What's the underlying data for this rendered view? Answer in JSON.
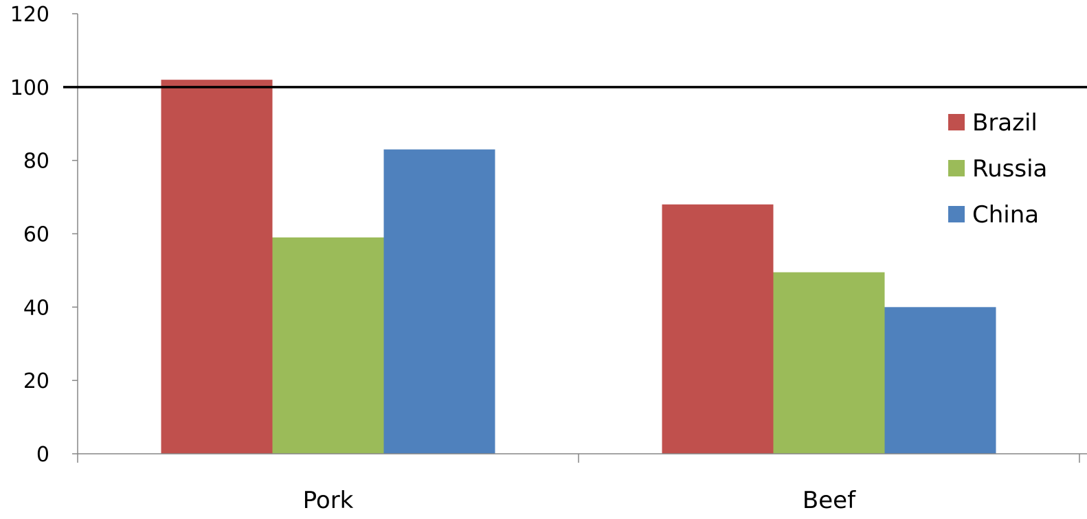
{
  "chart_data": {
    "type": "bar",
    "categories": [
      "Pork",
      "Beef"
    ],
    "series": [
      {
        "name": "Brazil",
        "values": [
          102,
          68
        ],
        "color": "#c0504d"
      },
      {
        "name": "Russia",
        "values": [
          59,
          49.5
        ],
        "color": "#9bbb59"
      },
      {
        "name": "China",
        "values": [
          83,
          40
        ],
        "color": "#4f81bd"
      }
    ],
    "ylim": [
      0,
      120
    ],
    "yticks": [
      "0",
      "20",
      "40",
      "60",
      "80",
      "100",
      "120"
    ],
    "reference_line": {
      "value": 100,
      "color": "#000000"
    },
    "legend_position": "right",
    "grid": false,
    "title": "",
    "xlabel": "",
    "ylabel": ""
  }
}
